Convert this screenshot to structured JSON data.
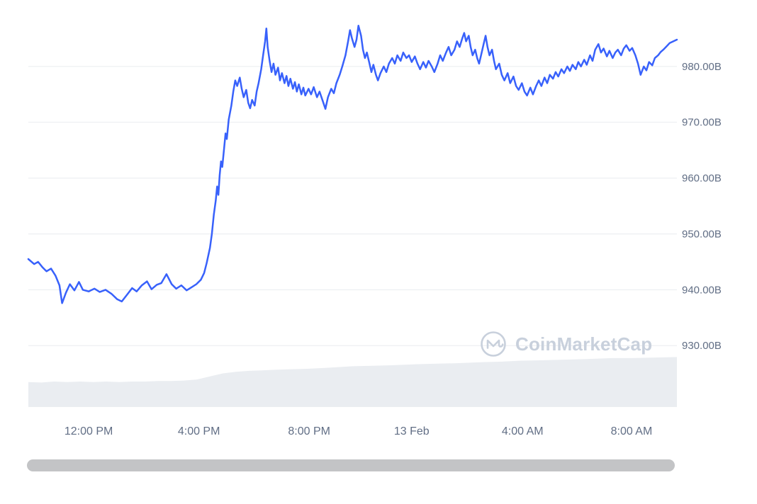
{
  "colors": {
    "line": "#3861fb",
    "grid": "#e9ecef",
    "axis_label": "#616e85",
    "volume_fill": "#eaedf1",
    "watermark": "#c8d0dc",
    "scrollbar": "#c3c4c6",
    "background": "#ffffff"
  },
  "watermark": {
    "brand": "CoinMarketCap",
    "logo": "coinmarketcap-logo"
  },
  "chart_data": {
    "type": "line",
    "title": "",
    "xlabel": "",
    "ylabel": "",
    "unit": "B",
    "ylim": [
      919,
      990
    ],
    "grid": true,
    "legend": false,
    "y_ticks": [
      {
        "value": 930,
        "label": "930.00B"
      },
      {
        "value": 940,
        "label": "940.00B"
      },
      {
        "value": 950,
        "label": "950.00B"
      },
      {
        "value": 960,
        "label": "960.00B"
      },
      {
        "value": 970,
        "label": "970.00B"
      },
      {
        "value": 980,
        "label": "980.00B"
      }
    ],
    "x_ticks": [
      {
        "f": 0.093,
        "label": "12:00 PM"
      },
      {
        "f": 0.263,
        "label": "4:00 PM"
      },
      {
        "f": 0.433,
        "label": "8:00 PM"
      },
      {
        "f": 0.591,
        "label": "13 Feb"
      },
      {
        "f": 0.762,
        "label": "4:00 AM"
      },
      {
        "f": 0.93,
        "label": "8:00 AM"
      }
    ],
    "series": [
      {
        "name": "market_cap",
        "kind": "line",
        "points": [
          [
            0.0,
            945.5
          ],
          [
            0.009,
            944.6
          ],
          [
            0.015,
            945.0
          ],
          [
            0.022,
            944.0
          ],
          [
            0.028,
            943.3
          ],
          [
            0.035,
            943.8
          ],
          [
            0.042,
            942.5
          ],
          [
            0.048,
            940.8
          ],
          [
            0.052,
            937.6
          ],
          [
            0.058,
            939.5
          ],
          [
            0.064,
            941.0
          ],
          [
            0.071,
            939.9
          ],
          [
            0.078,
            941.4
          ],
          [
            0.084,
            940.0
          ],
          [
            0.093,
            939.7
          ],
          [
            0.102,
            940.2
          ],
          [
            0.11,
            939.6
          ],
          [
            0.119,
            940.0
          ],
          [
            0.128,
            939.3
          ],
          [
            0.137,
            938.3
          ],
          [
            0.144,
            937.9
          ],
          [
            0.152,
            939.1
          ],
          [
            0.16,
            940.3
          ],
          [
            0.167,
            939.7
          ],
          [
            0.175,
            940.8
          ],
          [
            0.183,
            941.5
          ],
          [
            0.19,
            940.1
          ],
          [
            0.198,
            940.9
          ],
          [
            0.205,
            941.2
          ],
          [
            0.213,
            942.8
          ],
          [
            0.221,
            941.0
          ],
          [
            0.228,
            940.2
          ],
          [
            0.236,
            940.8
          ],
          [
            0.244,
            939.9
          ],
          [
            0.251,
            940.4
          ],
          [
            0.259,
            941.0
          ],
          [
            0.266,
            941.8
          ],
          [
            0.271,
            943.0
          ],
          [
            0.275,
            944.8
          ],
          [
            0.28,
            947.5
          ],
          [
            0.283,
            950.0
          ],
          [
            0.286,
            953.5
          ],
          [
            0.289,
            956.0
          ],
          [
            0.291,
            958.5
          ],
          [
            0.293,
            957.0
          ],
          [
            0.295,
            960.5
          ],
          [
            0.297,
            963.0
          ],
          [
            0.299,
            962.0
          ],
          [
            0.302,
            965.5
          ],
          [
            0.304,
            968.0
          ],
          [
            0.306,
            967.0
          ],
          [
            0.309,
            970.5
          ],
          [
            0.313,
            973.0
          ],
          [
            0.316,
            975.5
          ],
          [
            0.319,
            977.5
          ],
          [
            0.322,
            976.5
          ],
          [
            0.326,
            978.0
          ],
          [
            0.329,
            976.0
          ],
          [
            0.332,
            974.5
          ],
          [
            0.336,
            975.8
          ],
          [
            0.339,
            973.5
          ],
          [
            0.342,
            972.5
          ],
          [
            0.345,
            974.0
          ],
          [
            0.349,
            973.0
          ],
          [
            0.352,
            975.5
          ],
          [
            0.355,
            977.0
          ],
          [
            0.359,
            979.5
          ],
          [
            0.362,
            982.0
          ],
          [
            0.365,
            984.5
          ],
          [
            0.367,
            986.8
          ],
          [
            0.369,
            983.5
          ],
          [
            0.372,
            981.0
          ],
          [
            0.375,
            979.0
          ],
          [
            0.378,
            980.5
          ],
          [
            0.381,
            978.5
          ],
          [
            0.385,
            979.8
          ],
          [
            0.388,
            977.5
          ],
          [
            0.391,
            978.8
          ],
          [
            0.395,
            977.0
          ],
          [
            0.398,
            978.3
          ],
          [
            0.401,
            976.5
          ],
          [
            0.404,
            977.8
          ],
          [
            0.408,
            976.0
          ],
          [
            0.411,
            977.2
          ],
          [
            0.414,
            975.5
          ],
          [
            0.417,
            976.8
          ],
          [
            0.421,
            975.0
          ],
          [
            0.424,
            976.2
          ],
          [
            0.427,
            974.8
          ],
          [
            0.432,
            976.0
          ],
          [
            0.436,
            975.0
          ],
          [
            0.44,
            976.3
          ],
          [
            0.445,
            974.5
          ],
          [
            0.449,
            975.5
          ],
          [
            0.454,
            973.8
          ],
          [
            0.458,
            972.4
          ],
          [
            0.462,
            974.5
          ],
          [
            0.467,
            976.0
          ],
          [
            0.471,
            975.2
          ],
          [
            0.475,
            977.0
          ],
          [
            0.48,
            978.5
          ],
          [
            0.484,
            980.0
          ],
          [
            0.489,
            982.0
          ],
          [
            0.493,
            984.5
          ],
          [
            0.496,
            986.5
          ],
          [
            0.499,
            985.0
          ],
          [
            0.503,
            983.5
          ],
          [
            0.506,
            984.8
          ],
          [
            0.509,
            987.3
          ],
          [
            0.513,
            985.5
          ],
          [
            0.516,
            983.0
          ],
          [
            0.519,
            981.5
          ],
          [
            0.522,
            982.5
          ],
          [
            0.526,
            980.5
          ],
          [
            0.529,
            979.0
          ],
          [
            0.532,
            980.3
          ],
          [
            0.536,
            978.5
          ],
          [
            0.539,
            977.5
          ],
          [
            0.543,
            978.8
          ],
          [
            0.548,
            980.0
          ],
          [
            0.552,
            979.0
          ],
          [
            0.556,
            980.5
          ],
          [
            0.561,
            981.5
          ],
          [
            0.565,
            980.5
          ],
          [
            0.569,
            982.0
          ],
          [
            0.574,
            981.0
          ],
          [
            0.578,
            982.5
          ],
          [
            0.583,
            981.5
          ],
          [
            0.587,
            982.0
          ],
          [
            0.591,
            980.8
          ],
          [
            0.596,
            981.8
          ],
          [
            0.6,
            980.5
          ],
          [
            0.604,
            979.5
          ],
          [
            0.609,
            980.8
          ],
          [
            0.613,
            979.8
          ],
          [
            0.617,
            981.0
          ],
          [
            0.622,
            980.0
          ],
          [
            0.626,
            979.0
          ],
          [
            0.631,
            980.5
          ],
          [
            0.635,
            982.0
          ],
          [
            0.639,
            981.0
          ],
          [
            0.644,
            982.5
          ],
          [
            0.648,
            983.5
          ],
          [
            0.652,
            982.0
          ],
          [
            0.657,
            983.0
          ],
          [
            0.661,
            984.5
          ],
          [
            0.665,
            983.5
          ],
          [
            0.669,
            985.0
          ],
          [
            0.672,
            986.0
          ],
          [
            0.675,
            984.5
          ],
          [
            0.679,
            985.5
          ],
          [
            0.682,
            983.5
          ],
          [
            0.685,
            982.0
          ],
          [
            0.689,
            983.0
          ],
          [
            0.692,
            981.5
          ],
          [
            0.695,
            980.5
          ],
          [
            0.698,
            982.0
          ],
          [
            0.702,
            984.0
          ],
          [
            0.705,
            985.5
          ],
          [
            0.708,
            983.5
          ],
          [
            0.711,
            982.0
          ],
          [
            0.715,
            983.0
          ],
          [
            0.718,
            981.0
          ],
          [
            0.721,
            979.5
          ],
          [
            0.726,
            980.5
          ],
          [
            0.73,
            978.5
          ],
          [
            0.734,
            977.5
          ],
          [
            0.739,
            978.8
          ],
          [
            0.743,
            977.0
          ],
          [
            0.748,
            978.2
          ],
          [
            0.752,
            976.5
          ],
          [
            0.756,
            975.8
          ],
          [
            0.761,
            977.0
          ],
          [
            0.765,
            975.5
          ],
          [
            0.769,
            974.8
          ],
          [
            0.774,
            976.2
          ],
          [
            0.778,
            975.0
          ],
          [
            0.783,
            976.5
          ],
          [
            0.787,
            977.5
          ],
          [
            0.791,
            976.5
          ],
          [
            0.796,
            978.0
          ],
          [
            0.8,
            977.0
          ],
          [
            0.804,
            978.5
          ],
          [
            0.809,
            977.8
          ],
          [
            0.813,
            979.0
          ],
          [
            0.817,
            978.2
          ],
          [
            0.822,
            979.5
          ],
          [
            0.826,
            978.8
          ],
          [
            0.831,
            980.0
          ],
          [
            0.835,
            979.2
          ],
          [
            0.839,
            980.3
          ],
          [
            0.844,
            979.5
          ],
          [
            0.848,
            980.8
          ],
          [
            0.852,
            980.0
          ],
          [
            0.857,
            981.2
          ],
          [
            0.861,
            980.3
          ],
          [
            0.866,
            982.0
          ],
          [
            0.87,
            981.0
          ],
          [
            0.874,
            983.0
          ],
          [
            0.879,
            984.0
          ],
          [
            0.883,
            982.5
          ],
          [
            0.887,
            983.2
          ],
          [
            0.892,
            981.8
          ],
          [
            0.896,
            982.8
          ],
          [
            0.901,
            981.5
          ],
          [
            0.905,
            982.5
          ],
          [
            0.909,
            983.0
          ],
          [
            0.914,
            982.0
          ],
          [
            0.918,
            983.2
          ],
          [
            0.922,
            983.8
          ],
          [
            0.927,
            982.8
          ],
          [
            0.931,
            983.3
          ],
          [
            0.936,
            982.0
          ],
          [
            0.94,
            980.5
          ],
          [
            0.944,
            978.5
          ],
          [
            0.949,
            980.0
          ],
          [
            0.953,
            979.3
          ],
          [
            0.957,
            980.8
          ],
          [
            0.962,
            980.2
          ],
          [
            0.966,
            981.5
          ],
          [
            0.971,
            982.0
          ],
          [
            0.975,
            982.6
          ],
          [
            0.979,
            983.0
          ],
          [
            0.984,
            983.6
          ],
          [
            0.989,
            984.2
          ],
          [
            1.0,
            984.8
          ]
        ]
      },
      {
        "name": "volume",
        "kind": "area",
        "points": [
          [
            0.0,
            0.49
          ],
          [
            0.02,
            0.48
          ],
          [
            0.04,
            0.5
          ],
          [
            0.06,
            0.49
          ],
          [
            0.08,
            0.5
          ],
          [
            0.1,
            0.49
          ],
          [
            0.12,
            0.5
          ],
          [
            0.14,
            0.49
          ],
          [
            0.16,
            0.5
          ],
          [
            0.18,
            0.5
          ],
          [
            0.2,
            0.51
          ],
          [
            0.22,
            0.51
          ],
          [
            0.24,
            0.52
          ],
          [
            0.26,
            0.54
          ],
          [
            0.28,
            0.6
          ],
          [
            0.3,
            0.66
          ],
          [
            0.32,
            0.69
          ],
          [
            0.34,
            0.71
          ],
          [
            0.36,
            0.72
          ],
          [
            0.38,
            0.73
          ],
          [
            0.4,
            0.74
          ],
          [
            0.43,
            0.75
          ],
          [
            0.46,
            0.77
          ],
          [
            0.5,
            0.8
          ],
          [
            0.53,
            0.81
          ],
          [
            0.56,
            0.82
          ],
          [
            0.6,
            0.84
          ],
          [
            0.63,
            0.85
          ],
          [
            0.66,
            0.86
          ],
          [
            0.7,
            0.88
          ],
          [
            0.73,
            0.89
          ],
          [
            0.76,
            0.91
          ],
          [
            0.8,
            0.92
          ],
          [
            0.83,
            0.93
          ],
          [
            0.86,
            0.94
          ],
          [
            0.9,
            0.96
          ],
          [
            0.93,
            0.96
          ],
          [
            0.96,
            0.97
          ],
          [
            1.0,
            0.98
          ]
        ]
      }
    ]
  }
}
